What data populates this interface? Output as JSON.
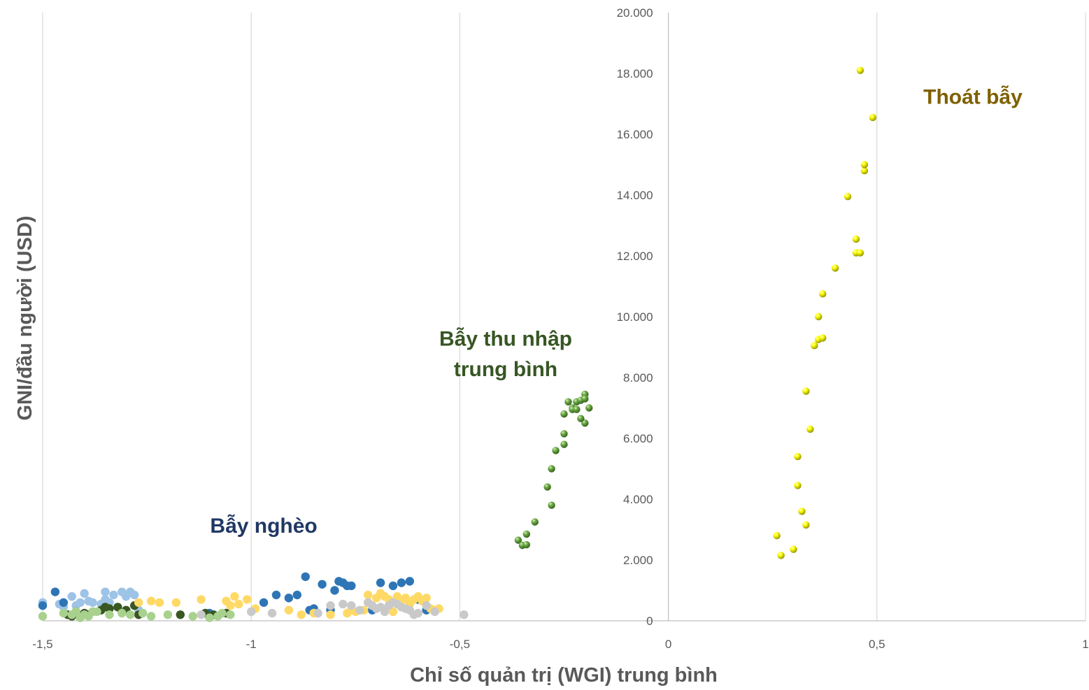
{
  "chart_data": {
    "type": "scatter",
    "title": "",
    "xlabel": "Chỉ số quản trị (WGI) trung bình",
    "ylabel": "GNI/đầu người (USD)",
    "xlim": [
      -1.5,
      1
    ],
    "ylim": [
      0,
      20000
    ],
    "x_ticks": [
      "-1,5",
      "-1",
      "-0,5",
      "0",
      "0,5",
      "1"
    ],
    "y_ticks": [
      "0",
      "2.000",
      "4.000",
      "6.000",
      "8.000",
      "10.000",
      "12.000",
      "14.000",
      "16.000",
      "18.000",
      "20.000"
    ],
    "grid": "vertical",
    "legend": "none",
    "annotations": [
      {
        "text": "Bẫy nghèo",
        "x": -0.97,
        "y": 2900,
        "color": "#203864"
      },
      {
        "text": "Bẫy thu nhập",
        "x": -0.39,
        "y": 9050,
        "color": "#375623"
      },
      {
        "text": "trung bình",
        "x": -0.39,
        "y": 8050,
        "color": "#375623"
      },
      {
        "text": "Thoát bẫy",
        "x": 0.73,
        "y": 17000,
        "color": "#7F6000"
      }
    ],
    "series": [
      {
        "color": "#9DC3E6",
        "style": "dot",
        "x": [
          -1.5,
          -1.46,
          -1.43,
          -1.41,
          -1.4,
          -1.39,
          -1.38,
          -1.36,
          -1.35,
          -1.35,
          -1.34,
          -1.33,
          -1.31,
          -1.3,
          -1.29,
          -1.28,
          -1.27,
          -1.45,
          -1.42
        ],
        "y": [
          600,
          550,
          800,
          600,
          900,
          650,
          600,
          550,
          950,
          700,
          600,
          850,
          950,
          800,
          950,
          850,
          350,
          450,
          500
        ]
      },
      {
        "color": "#2E75B6",
        "style": "dot",
        "x": [
          -1.5,
          -1.47,
          -1.45,
          -1.1,
          -0.97,
          -0.94,
          -0.91,
          -0.89,
          -0.87,
          -0.85,
          -0.83,
          -0.8,
          -0.79,
          -0.78,
          -0.77,
          -0.76,
          -0.71,
          -0.69,
          -0.66,
          -0.64,
          -0.62,
          -0.6,
          -0.58,
          -0.81,
          -0.86
        ],
        "y": [
          500,
          950,
          600,
          250,
          600,
          850,
          750,
          850,
          1450,
          400,
          1200,
          1000,
          1300,
          1250,
          1150,
          1150,
          350,
          1250,
          1150,
          1250,
          1300,
          700,
          350,
          350,
          350
        ]
      },
      {
        "color": "#385723",
        "style": "dot",
        "x": [
          -1.44,
          -1.42,
          -1.4,
          -1.39,
          -1.36,
          -1.34,
          -1.32,
          -1.3,
          -1.28,
          -1.27,
          -1.17,
          -1.11,
          -1.09,
          -1.06,
          -1.43,
          -1.35
        ],
        "y": [
          200,
          300,
          250,
          200,
          350,
          400,
          450,
          350,
          500,
          200,
          200,
          250,
          200,
          250,
          150,
          450
        ]
      },
      {
        "color": "#A9D18E",
        "style": "dot",
        "x": [
          -1.5,
          -1.45,
          -1.43,
          -1.41,
          -1.4,
          -1.39,
          -1.37,
          -1.34,
          -1.31,
          -1.29,
          -1.26,
          -1.24,
          -1.2,
          -1.14,
          -1.1,
          -1.08,
          -1.07,
          -1.05,
          -1.42,
          -1.38
        ],
        "y": [
          150,
          250,
          200,
          100,
          200,
          150,
          300,
          200,
          250,
          200,
          250,
          150,
          200,
          150,
          100,
          150,
          250,
          200,
          300,
          300
        ]
      },
      {
        "color": "#FFD966",
        "style": "dot",
        "x": [
          -1.27,
          -1.24,
          -1.22,
          -1.18,
          -1.12,
          -1.06,
          -1.05,
          -1.04,
          -1.03,
          -1.01,
          -0.99,
          -0.91,
          -0.88,
          -0.85,
          -0.81,
          -0.77,
          -0.75,
          -0.73,
          -0.72,
          -0.7,
          -0.69,
          -0.68,
          -0.67,
          -0.65,
          -0.64,
          -0.63,
          -0.62,
          -0.61,
          -0.6,
          -0.59,
          -0.58,
          -0.57,
          -0.56,
          -0.55,
          -0.76,
          -0.66
        ],
        "y": [
          600,
          650,
          600,
          600,
          700,
          650,
          500,
          800,
          550,
          700,
          400,
          350,
          200,
          250,
          200,
          250,
          300,
          350,
          850,
          750,
          900,
          800,
          700,
          800,
          650,
          750,
          550,
          700,
          800,
          650,
          750,
          400,
          350,
          400,
          350,
          300
        ]
      },
      {
        "color": "#C9C9C9",
        "style": "dot",
        "x": [
          -1.12,
          -1.0,
          -0.95,
          -0.84,
          -0.81,
          -0.78,
          -0.76,
          -0.74,
          -0.72,
          -0.7,
          -0.68,
          -0.67,
          -0.65,
          -0.64,
          -0.63,
          -0.62,
          -0.6,
          -0.58,
          -0.56,
          -0.49,
          -0.71,
          -0.69,
          -0.61,
          -0.66
        ],
        "y": [
          200,
          300,
          250,
          250,
          500,
          550,
          500,
          350,
          600,
          400,
          300,
          500,
          550,
          450,
          400,
          350,
          250,
          500,
          300,
          200,
          500,
          450,
          200,
          600
        ]
      },
      {
        "color": "#70AD47",
        "style": "ball",
        "x": [
          -0.36,
          -0.35,
          -0.34,
          -0.34,
          -0.32,
          -0.29,
          -0.28,
          -0.28,
          -0.27,
          -0.25,
          -0.25,
          -0.25,
          -0.24,
          -0.23,
          -0.23,
          -0.22,
          -0.21,
          -0.2,
          -0.19,
          -0.2,
          -0.2,
          -0.21,
          -0.22
        ],
        "y": [
          2650,
          2480,
          2850,
          2500,
          3250,
          4400,
          3800,
          5000,
          5600,
          5800,
          6150,
          6800,
          7200,
          7000,
          6950,
          7200,
          7250,
          7450,
          7000,
          6500,
          7300,
          6650,
          6950
        ]
      },
      {
        "color": "#FFFF00",
        "style": "ball",
        "x": [
          0.26,
          0.27,
          0.3,
          0.31,
          0.31,
          0.32,
          0.33,
          0.33,
          0.34,
          0.35,
          0.36,
          0.36,
          0.37,
          0.37,
          0.4,
          0.43,
          0.45,
          0.45,
          0.46,
          0.47,
          0.47,
          0.49,
          0.46
        ],
        "y": [
          2800,
          2150,
          2350,
          4450,
          5400,
          3600,
          3150,
          7550,
          6300,
          9050,
          9250,
          10000,
          9300,
          10750,
          11600,
          13950,
          12550,
          12100,
          12100,
          14800,
          15000,
          16550,
          18100
        ]
      }
    ]
  }
}
